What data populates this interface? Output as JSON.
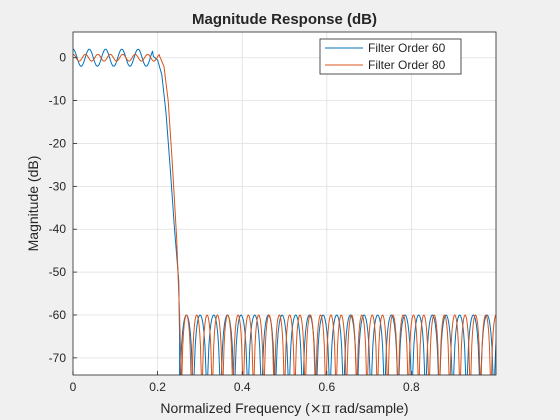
{
  "chart_data": {
    "type": "line",
    "title": "Magnitude Response (dB)",
    "xlabel_pre": "Normalized Frequency  (",
    "xlabel_sym": "×π",
    "xlabel_post": " rad/sample)",
    "ylabel": "Magnitude (dB)",
    "xlim": [
      0,
      1
    ],
    "ylim": [
      -74,
      6
    ],
    "xticks": [
      0,
      0.2,
      0.4,
      0.6,
      0.8
    ],
    "xtick_labels": [
      "0",
      "0.2",
      "0.4",
      "0.6",
      "0.8"
    ],
    "yticks": [
      0,
      -10,
      -20,
      -30,
      -40,
      -50,
      -60,
      -70
    ],
    "ytick_labels": [
      "0",
      "-10",
      "-20",
      "-30",
      "-40",
      "-50",
      "-60",
      "-70"
    ],
    "grid": true,
    "legend_position": "top-right",
    "series": [
      {
        "name": "Filter Order 60",
        "color": "#0072BD",
        "passband": {
          "ripple_db": 2,
          "ripple_cycles_per_unit": 26,
          "edge": 0.19
        },
        "transition_points": [
          [
            0.19,
            0.3
          ],
          [
            0.2,
            -0.5
          ],
          [
            0.21,
            -4
          ],
          [
            0.22,
            -13
          ],
          [
            0.23,
            -26
          ],
          [
            0.24,
            -40
          ],
          [
            0.25,
            -52
          ],
          [
            0.252,
            -66
          ]
        ],
        "stopband": {
          "start": 0.252,
          "floor_db": -60,
          "null_spacing": 0.0323
        }
      },
      {
        "name": "Filter Order 80",
        "color": "#D95319",
        "passband": {
          "ripple_db": 0.8,
          "ripple_cycles_per_unit": 34,
          "edge": 0.205
        },
        "transition_points": [
          [
            0.205,
            0.3
          ],
          [
            0.215,
            -2
          ],
          [
            0.225,
            -10
          ],
          [
            0.235,
            -25
          ],
          [
            0.245,
            -42
          ],
          [
            0.252,
            -60
          ],
          [
            0.256,
            -75
          ]
        ],
        "stopband": {
          "start": 0.256,
          "floor_db": -60,
          "null_spacing": 0.0244
        }
      }
    ]
  }
}
